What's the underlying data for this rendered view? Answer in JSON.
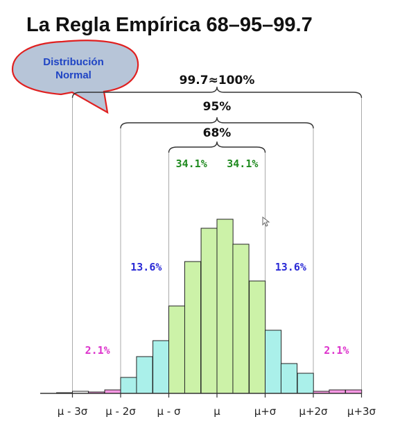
{
  "title": "La Regla Empírica 68–95–99.7",
  "callout": {
    "line1": "Distribución",
    "line2": "Normal"
  },
  "colors": {
    "tail": "#ff99e6",
    "middle": "#aaf0ea",
    "center": "#ccf2a8",
    "outer": "#ffffff",
    "green_text": "#1f8a1f",
    "blue_text": "#2a2ad6",
    "magenta_text": "#dd33cc",
    "callout_fill": "#b7c5d8",
    "callout_border": "#e02020",
    "callout_text": "#1f44c4"
  },
  "chart_data": {
    "type": "bar",
    "title": "La Regla Empírica 68–95–99.7",
    "x_ticks": [
      "μ - 3σ",
      "μ - 2σ",
      "μ - σ",
      "μ",
      "μ+σ",
      "μ+2σ",
      "μ+3σ"
    ],
    "x_range": [
      -3.5,
      3.0
    ],
    "bin_width_sigma": 0.333,
    "bars": [
      {
        "bin_start": -3.33,
        "height": 1,
        "region": "outer"
      },
      {
        "bin_start": -3.0,
        "height": 3,
        "region": "outer"
      },
      {
        "bin_start": -2.67,
        "height": 2,
        "region": "tail"
      },
      {
        "bin_start": -2.33,
        "height": 5,
        "region": "tail"
      },
      {
        "bin_start": -2.0,
        "height": 11,
        "region": "tail"
      },
      {
        "bin_start": -2.0,
        "height": 23,
        "region": "middle"
      },
      {
        "bin_start": -1.67,
        "height": 53,
        "region": "middle"
      },
      {
        "bin_start": -1.33,
        "height": 76,
        "region": "middle"
      },
      {
        "bin_start": -1.0,
        "height": 126,
        "region": "center"
      },
      {
        "bin_start": -0.67,
        "height": 190,
        "region": "center"
      },
      {
        "bin_start": -0.33,
        "height": 238,
        "region": "center"
      },
      {
        "bin_start": 0.0,
        "height": 251,
        "region": "center"
      },
      {
        "bin_start": 0.33,
        "height": 215,
        "region": "center"
      },
      {
        "bin_start": 0.67,
        "height": 162,
        "region": "center"
      },
      {
        "bin_start": 1.0,
        "height": 91,
        "region": "middle"
      },
      {
        "bin_start": 1.33,
        "height": 43,
        "region": "middle"
      },
      {
        "bin_start": 1.67,
        "height": 29,
        "region": "middle"
      },
      {
        "bin_start": 2.0,
        "height": 3,
        "region": "tail"
      },
      {
        "bin_start": 2.33,
        "height": 5,
        "region": "tail"
      },
      {
        "bin_start": 2.67,
        "height": 5,
        "region": "tail"
      }
    ],
    "brackets": [
      {
        "label": "99.7≈100%",
        "from": -3,
        "to": 3
      },
      {
        "label": "95%",
        "from": -2,
        "to": 2
      },
      {
        "label": "68%",
        "from": -1,
        "to": 1
      }
    ],
    "region_labels": [
      {
        "text": "34.1%",
        "at": -0.5,
        "kind": "green"
      },
      {
        "text": "34.1%",
        "at": 0.5,
        "kind": "green"
      },
      {
        "text": "13.6%",
        "at": -1.5,
        "kind": "blue"
      },
      {
        "text": "13.6%",
        "at": 1.5,
        "kind": "blue"
      },
      {
        "text": "2.1%",
        "at": -2.5,
        "kind": "magenta"
      },
      {
        "text": "2.1%",
        "at": 2.5,
        "kind": "magenta"
      }
    ],
    "grid": false
  }
}
